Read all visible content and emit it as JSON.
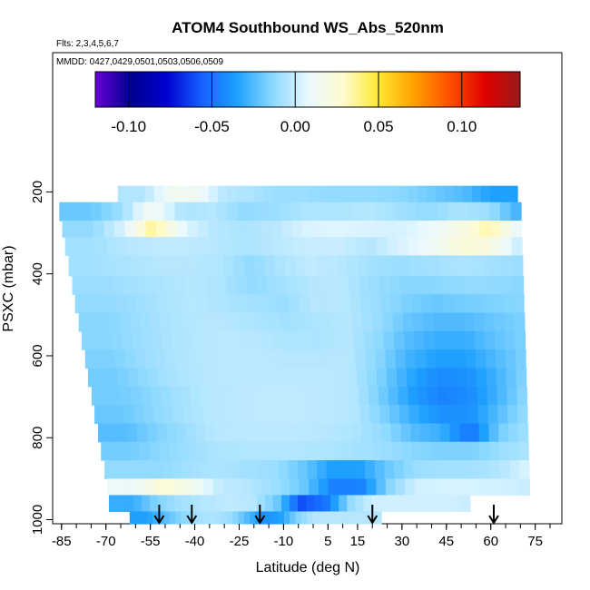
{
  "chart_data": {
    "type": "heatmap",
    "title": "ATOM4 Southbound WS_Abs_520nm",
    "flights_note": "Flts: 2,3,4,5,6,7",
    "dates_note": "MMDD: 0427,0429,0501,0503,0506,0509",
    "xlabel": "Latitude (deg N)",
    "ylabel": "PSXC (mbar)",
    "xlim": [
      -88,
      84
    ],
    "ylim": [
      1010,
      -140
    ],
    "x_ticks": [
      -85,
      -70,
      -55,
      -40,
      -25,
      -10,
      5,
      15,
      30,
      45,
      60,
      75
    ],
    "y_ticks": [
      200,
      400,
      600,
      800,
      1000
    ],
    "colorbar": {
      "range": [
        -0.12,
        0.135
      ],
      "ticks": [
        -0.1,
        -0.05,
        0.0,
        0.05,
        0.1
      ],
      "tick_labels": [
        "-0.10",
        "-0.05",
        "0.00",
        "0.05",
        "0.10"
      ],
      "colors": [
        "#6a00d8",
        "#00008c",
        "#0000d0",
        "#1560ff",
        "#1ea0ff",
        "#8ad8ff",
        "#eaf9ff",
        "#fffbd0",
        "#ffe830",
        "#ffa000",
        "#ff5000",
        "#e00000",
        "#9a1a1a"
      ]
    },
    "pressure_levels": [
      200,
      250,
      290,
      330,
      380,
      430,
      470,
      520,
      560,
      610,
      650,
      700,
      740,
      790,
      830,
      880,
      920,
      960,
      1000
    ],
    "grid_values": [
      [
        -0.005,
        -0.005,
        0.015,
        0.012,
        -0.004,
        -0.006,
        -0.01,
        -0.01,
        -0.012,
        -0.012,
        -0.012,
        -0.015,
        -0.02,
        -0.025,
        -0.035,
        -0.035
      ],
      [
        -0.02,
        -0.02,
        -0.01,
        0.015,
        -0.006,
        -0.004,
        -0.012,
        -0.01,
        -0.006,
        -0.006,
        -0.004,
        -0.008,
        -0.012,
        -0.006,
        -0.01,
        -0.03
      ],
      [
        -0.012,
        -0.012,
        0.004,
        0.038,
        0.005,
        -0.004,
        -0.006,
        -0.003,
        0.004,
        0.005,
        0.004,
        0.003,
        0.008,
        0.02,
        0.035,
        0.005
      ],
      [
        -0.008,
        -0.008,
        -0.004,
        -0.002,
        -0.002,
        -0.004,
        -0.006,
        -0.003,
        0.0,
        0.0,
        -0.004,
        0.004,
        0.01,
        0.025,
        0.02,
        -0.002
      ],
      [
        -0.008,
        -0.008,
        -0.006,
        -0.004,
        -0.004,
        -0.005,
        -0.012,
        -0.006,
        -0.002,
        -0.004,
        -0.008,
        -0.01,
        -0.008,
        -0.006,
        -0.008,
        -0.01
      ],
      [
        -0.01,
        -0.01,
        -0.008,
        -0.006,
        -0.004,
        -0.006,
        -0.012,
        -0.008,
        -0.004,
        -0.004,
        -0.01,
        -0.014,
        -0.014,
        -0.012,
        -0.012,
        -0.014
      ],
      [
        -0.012,
        -0.012,
        -0.01,
        -0.006,
        -0.004,
        -0.006,
        -0.008,
        -0.01,
        -0.004,
        -0.004,
        -0.01,
        -0.016,
        -0.02,
        -0.018,
        -0.016,
        -0.014
      ],
      [
        -0.014,
        -0.014,
        -0.01,
        -0.006,
        -0.004,
        -0.004,
        -0.006,
        -0.008,
        -0.006,
        -0.004,
        -0.01,
        -0.02,
        -0.025,
        -0.025,
        -0.02,
        -0.016
      ],
      [
        -0.014,
        -0.014,
        -0.01,
        -0.006,
        -0.004,
        -0.003,
        -0.004,
        -0.006,
        -0.006,
        -0.004,
        -0.012,
        -0.024,
        -0.03,
        -0.03,
        -0.022,
        -0.016
      ],
      [
        -0.016,
        -0.016,
        -0.01,
        -0.006,
        -0.004,
        -0.003,
        -0.003,
        -0.004,
        -0.004,
        -0.004,
        -0.014,
        -0.028,
        -0.035,
        -0.035,
        -0.025,
        -0.016
      ],
      [
        -0.018,
        -0.018,
        -0.012,
        -0.006,
        -0.004,
        -0.003,
        -0.003,
        -0.003,
        -0.003,
        -0.004,
        -0.016,
        -0.032,
        -0.042,
        -0.04,
        -0.028,
        -0.014
      ],
      [
        -0.018,
        -0.018,
        -0.014,
        -0.008,
        -0.004,
        -0.003,
        -0.002,
        -0.002,
        -0.003,
        -0.004,
        -0.018,
        -0.035,
        -0.045,
        -0.042,
        -0.028,
        -0.012
      ],
      [
        -0.02,
        -0.02,
        -0.014,
        -0.008,
        -0.004,
        -0.003,
        -0.002,
        -0.002,
        -0.003,
        -0.004,
        -0.016,
        -0.03,
        -0.04,
        -0.04,
        -0.024,
        -0.01
      ],
      [
        -0.024,
        -0.024,
        -0.016,
        -0.01,
        -0.004,
        -0.003,
        -0.003,
        -0.003,
        -0.004,
        -0.006,
        -0.012,
        -0.024,
        -0.03,
        -0.05,
        -0.018,
        -0.008
      ],
      [
        -0.018,
        -0.018,
        -0.014,
        -0.01,
        -0.006,
        -0.005,
        -0.005,
        -0.005,
        -0.006,
        -0.008,
        -0.01,
        -0.014,
        -0.016,
        -0.016,
        -0.01,
        -0.006
      ],
      [
        -0.012,
        -0.012,
        -0.012,
        -0.008,
        -0.006,
        -0.008,
        -0.01,
        -0.02,
        -0.035,
        -0.035,
        -0.02,
        -0.01,
        -0.008,
        -0.008,
        -0.005,
        0.005
      ],
      [
        0.01,
        0.01,
        0.028,
        0.015,
        -0.002,
        -0.004,
        -0.01,
        -0.02,
        -0.045,
        -0.045,
        -0.015,
        0.002,
        0.003,
        0.003,
        0.002,
        0.0
      ],
      [
        -0.03,
        -0.03,
        -0.015,
        -0.008,
        -0.004,
        -0.002,
        -0.004,
        -0.02,
        -0.06,
        -0.05,
        -0.012,
        0.002,
        0.002,
        0.002,
        0.002,
        0.0
      ],
      [
        -0.035,
        -0.035,
        -0.025,
        -0.015,
        -0.008,
        -0.006,
        -0.01,
        -0.025,
        -0.04,
        -0.035,
        -0.015,
        -0.004,
        -0.004,
        -0.004,
        -0.004,
        -0.004
      ]
    ],
    "flight_marker_latitudes": [
      -52,
      -41,
      -18,
      20,
      61
    ]
  }
}
